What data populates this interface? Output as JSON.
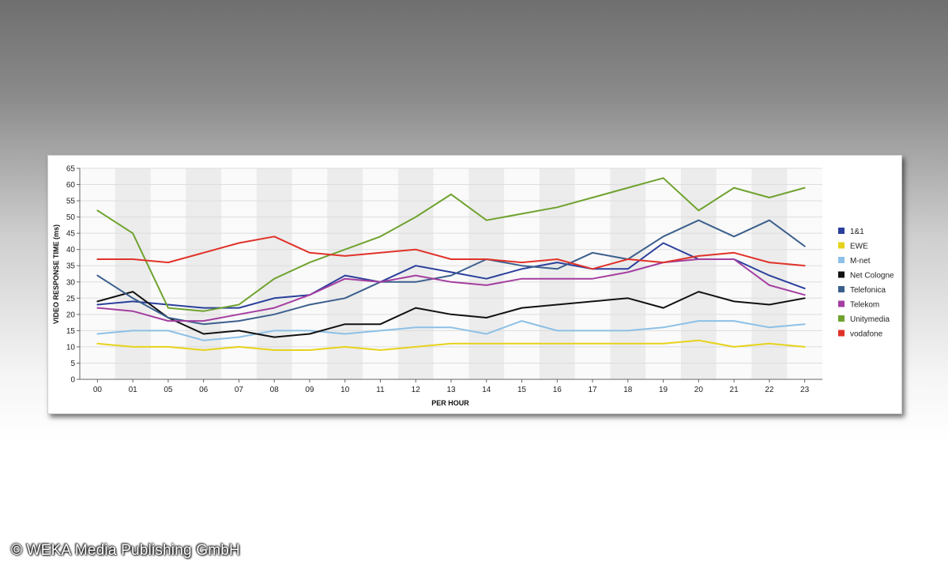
{
  "copyright": "© WEKA Media Publishing GmbH",
  "chart_data": {
    "type": "line",
    "title": "",
    "xlabel": "PER HOUR",
    "ylabel": "VIDEO RESPONSE TIME (ms)",
    "ylim": [
      0,
      65
    ],
    "yticks": [
      0,
      5,
      10,
      15,
      20,
      25,
      30,
      35,
      40,
      45,
      50,
      55,
      60,
      65
    ],
    "grid": true,
    "legend_position": "right",
    "categories": [
      "00",
      "01",
      "05",
      "06",
      "07",
      "08",
      "09",
      "10",
      "11",
      "12",
      "13",
      "14",
      "15",
      "16",
      "17",
      "18",
      "19",
      "20",
      "21",
      "22",
      "23"
    ],
    "series": [
      {
        "name": "1&1",
        "color": "#2a3f9c",
        "values": [
          23,
          24,
          23,
          22,
          22,
          25,
          26,
          32,
          30,
          35,
          33,
          31,
          34,
          36,
          34,
          34,
          42,
          37,
          37,
          32,
          28
        ]
      },
      {
        "name": "EWE",
        "color": "#e6d21a",
        "values": [
          11,
          10,
          10,
          9,
          10,
          9,
          9,
          10,
          9,
          10,
          11,
          11,
          11,
          11,
          11,
          11,
          11,
          12,
          10,
          11,
          10
        ]
      },
      {
        "name": "M-net",
        "color": "#8cc0e6",
        "values": [
          14,
          15,
          15,
          12,
          13,
          15,
          15,
          14,
          15,
          16,
          16,
          14,
          18,
          15,
          15,
          15,
          16,
          18,
          18,
          16,
          17
        ]
      },
      {
        "name": "Net Cologne",
        "color": "#111111",
        "values": [
          24,
          27,
          19,
          14,
          15,
          13,
          14,
          17,
          17,
          22,
          20,
          19,
          22,
          23,
          24,
          25,
          22,
          27,
          24,
          23,
          25
        ]
      },
      {
        "name": "Telefonica",
        "color": "#3b5f8c",
        "values": [
          32,
          25,
          19,
          17,
          18,
          20,
          23,
          25,
          30,
          30,
          32,
          37,
          35,
          34,
          39,
          37,
          44,
          49,
          44,
          49,
          41
        ]
      },
      {
        "name": "Telekom",
        "color": "#a43ea0",
        "values": [
          22,
          21,
          18,
          18,
          20,
          22,
          26,
          31,
          30,
          32,
          30,
          29,
          31,
          31,
          31,
          33,
          36,
          37,
          37,
          29,
          26
        ]
      },
      {
        "name": "Unitymedia",
        "color": "#6fa22e",
        "values": [
          52,
          45,
          22,
          21,
          23,
          31,
          36,
          40,
          44,
          50,
          57,
          49,
          51,
          53,
          56,
          59,
          62,
          52,
          59,
          56,
          59
        ]
      },
      {
        "name": "vodafone",
        "color": "#e03229",
        "values": [
          37,
          37,
          36,
          39,
          42,
          44,
          39,
          38,
          39,
          40,
          37,
          37,
          36,
          37,
          34,
          37,
          36,
          38,
          39,
          36,
          35
        ]
      }
    ]
  }
}
